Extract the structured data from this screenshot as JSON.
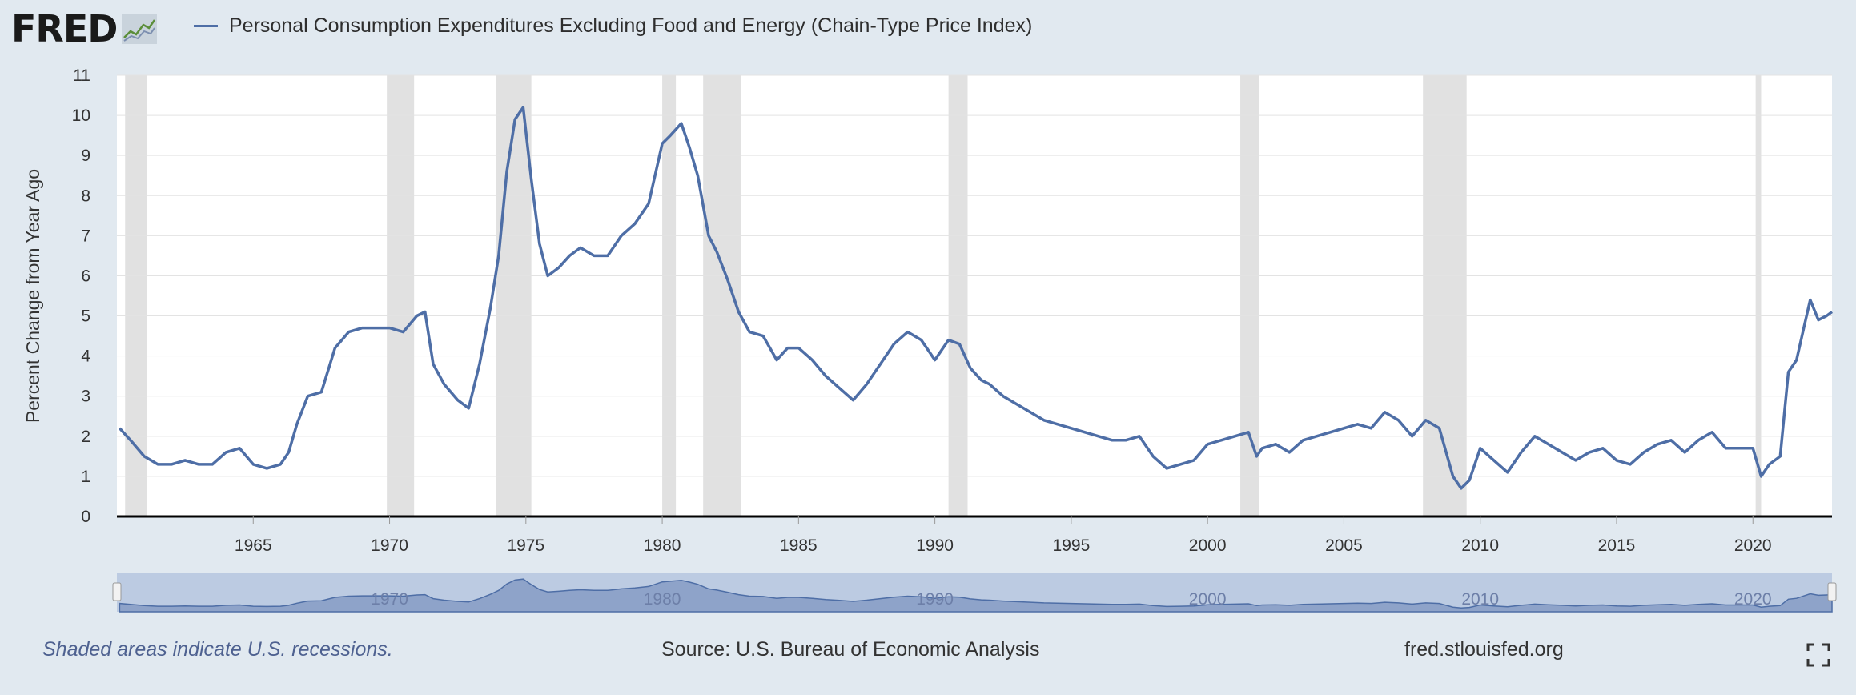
{
  "logo": {
    "text": "FRED"
  },
  "series_color": "#4e6ea6",
  "recession_color": "#e1e1e1",
  "footer": {
    "note": "Shaded areas indicate U.S. recessions.",
    "source": "Source: U.S. Bureau of Economic Analysis",
    "site": "fred.stlouisfed.org"
  },
  "chart_data": {
    "type": "line",
    "title": "Personal Consumption Expenditures Excluding Food and Energy (Chain-Type Price Index)",
    "ylabel": "Percent Change from Year Ago",
    "xlabel": "",
    "xlim": [
      1960.0,
      2022.9
    ],
    "ylim": [
      0,
      11
    ],
    "yticks": [
      0,
      1,
      2,
      3,
      4,
      5,
      6,
      7,
      8,
      9,
      10,
      11
    ],
    "xticks": [
      1965,
      1970,
      1975,
      1980,
      1985,
      1990,
      1995,
      2000,
      2005,
      2010,
      2015,
      2020
    ],
    "grid": true,
    "navigator_labels": [
      "1970",
      "1980",
      "1990",
      "2000",
      "2010",
      "2020"
    ],
    "recessions": [
      [
        1960.3,
        1961.1
      ],
      [
        1969.9,
        1970.9
      ],
      [
        1973.9,
        1975.2
      ],
      [
        1980.0,
        1980.5
      ],
      [
        1981.5,
        1982.9
      ],
      [
        1990.5,
        1991.2
      ],
      [
        2001.2,
        2001.9
      ],
      [
        2007.9,
        2009.5
      ],
      [
        2020.1,
        2020.3
      ]
    ],
    "series": [
      {
        "name": "Personal Consumption Expenditures Excluding Food and Energy (Chain-Type Price Index)",
        "x": [
          1960.1,
          1960.5,
          1961.0,
          1961.5,
          1962.0,
          1962.5,
          1963.0,
          1963.5,
          1964.0,
          1964.5,
          1965.0,
          1965.5,
          1966.0,
          1966.3,
          1966.6,
          1967.0,
          1967.5,
          1968.0,
          1968.5,
          1969.0,
          1969.5,
          1970.0,
          1970.5,
          1971.0,
          1971.3,
          1971.6,
          1972.0,
          1972.5,
          1972.9,
          1973.3,
          1973.7,
          1974.0,
          1974.3,
          1974.6,
          1974.9,
          1975.2,
          1975.5,
          1975.8,
          1976.2,
          1976.6,
          1977.0,
          1977.5,
          1978.0,
          1978.5,
          1979.0,
          1979.5,
          1980.0,
          1980.3,
          1980.7,
          1981.0,
          1981.3,
          1981.7,
          1982.0,
          1982.4,
          1982.8,
          1983.2,
          1983.7,
          1984.2,
          1984.6,
          1985.0,
          1985.5,
          1986.0,
          1986.5,
          1987.0,
          1987.5,
          1988.0,
          1988.5,
          1989.0,
          1989.5,
          1990.0,
          1990.5,
          1990.9,
          1991.3,
          1991.7,
          1992.0,
          1992.5,
          1993.0,
          1993.5,
          1994.0,
          1994.5,
          1995.0,
          1995.5,
          1996.0,
          1996.5,
          1997.0,
          1997.5,
          1998.0,
          1998.5,
          1999.0,
          1999.5,
          2000.0,
          2000.5,
          2001.0,
          2001.5,
          2001.8,
          2002.0,
          2002.5,
          2003.0,
          2003.5,
          2004.0,
          2004.5,
          2005.0,
          2005.5,
          2006.0,
          2006.5,
          2007.0,
          2007.5,
          2008.0,
          2008.5,
          2009.0,
          2009.3,
          2009.6,
          2010.0,
          2010.5,
          2011.0,
          2011.5,
          2012.0,
          2012.5,
          2013.0,
          2013.5,
          2014.0,
          2014.5,
          2015.0,
          2015.5,
          2016.0,
          2016.5,
          2017.0,
          2017.5,
          2018.0,
          2018.5,
          2019.0,
          2019.5,
          2020.0,
          2020.3,
          2020.6,
          2021.0,
          2021.3,
          2021.6,
          2021.9,
          2022.1,
          2022.4,
          2022.7,
          2022.9
        ],
        "values": [
          2.2,
          1.9,
          1.5,
          1.3,
          1.3,
          1.4,
          1.3,
          1.3,
          1.6,
          1.7,
          1.3,
          1.2,
          1.3,
          1.6,
          2.3,
          3.0,
          3.1,
          4.2,
          4.6,
          4.7,
          4.7,
          4.7,
          4.6,
          5.0,
          5.1,
          3.8,
          3.3,
          2.9,
          2.7,
          3.8,
          5.2,
          6.5,
          8.6,
          9.9,
          10.2,
          8.4,
          6.8,
          6.0,
          6.2,
          6.5,
          6.7,
          6.5,
          6.5,
          7.0,
          7.3,
          7.8,
          9.3,
          9.5,
          9.8,
          9.2,
          8.5,
          7.0,
          6.6,
          5.9,
          5.1,
          4.6,
          4.5,
          3.9,
          4.2,
          4.2,
          3.9,
          3.5,
          3.2,
          2.9,
          3.3,
          3.8,
          4.3,
          4.6,
          4.4,
          3.9,
          4.4,
          4.3,
          3.7,
          3.4,
          3.3,
          3.0,
          2.8,
          2.6,
          2.4,
          2.3,
          2.2,
          2.1,
          2.0,
          1.9,
          1.9,
          2.0,
          1.5,
          1.2,
          1.3,
          1.4,
          1.8,
          1.9,
          2.0,
          2.1,
          1.5,
          1.7,
          1.8,
          1.6,
          1.9,
          2.0,
          2.1,
          2.2,
          2.3,
          2.2,
          2.6,
          2.4,
          2.0,
          2.4,
          2.2,
          1.0,
          0.7,
          0.9,
          1.7,
          1.4,
          1.1,
          1.6,
          2.0,
          1.8,
          1.6,
          1.4,
          1.6,
          1.7,
          1.4,
          1.3,
          1.6,
          1.8,
          1.9,
          1.6,
          1.9,
          2.1,
          1.7,
          1.7,
          1.7,
          1.0,
          1.3,
          1.5,
          3.6,
          3.9,
          4.8,
          5.4,
          4.9,
          5.0,
          5.1
        ]
      }
    ]
  }
}
